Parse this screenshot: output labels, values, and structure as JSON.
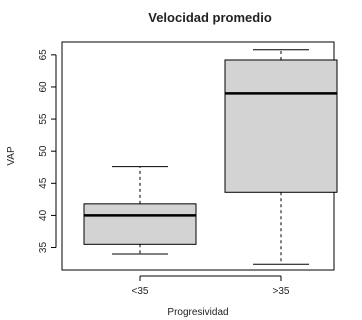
{
  "chart_data": {
    "type": "boxplot",
    "title": "Velocidad promedio",
    "xlabel": "Progresividad",
    "ylabel": "VAP",
    "categories": [
      "<35",
      ">35"
    ],
    "boxes": [
      {
        "category": "<35",
        "whisker_low": 34.0,
        "q1": 35.5,
        "median": 40.0,
        "q3": 41.8,
        "whisker_high": 47.6
      },
      {
        "category": ">35",
        "whisker_low": 32.4,
        "q1": 43.6,
        "median": 59.0,
        "q3": 64.2,
        "whisker_high": 65.8
      }
    ],
    "yticks": [
      35,
      40,
      45,
      50,
      55,
      60,
      65
    ],
    "ylim": [
      31.5,
      67.0
    ],
    "colors": {
      "box_fill": "#d3d3d3",
      "stroke": "#000000",
      "median": "#000000"
    }
  }
}
